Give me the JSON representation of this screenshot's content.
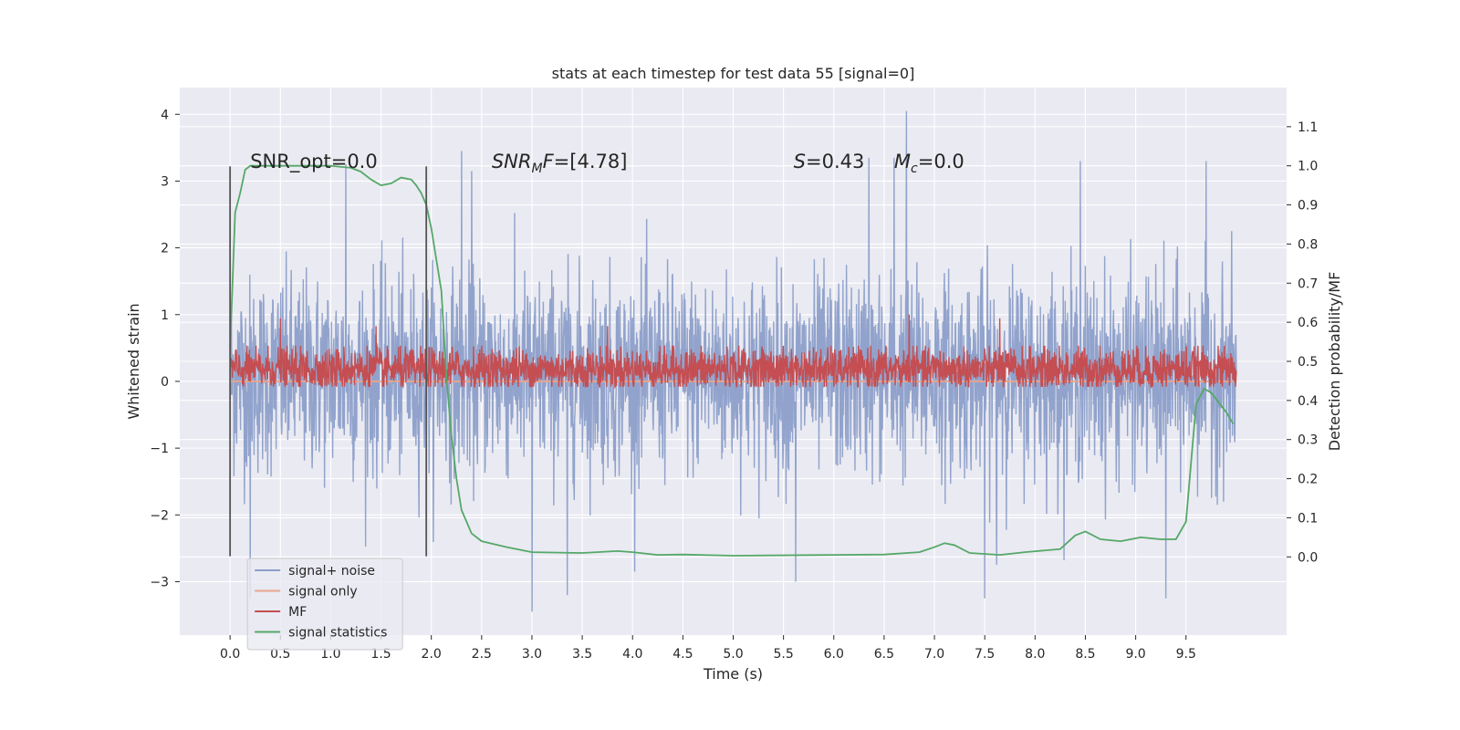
{
  "chart_data": {
    "type": "line",
    "title": "stats at each timestep for test data 55 [signal=0]",
    "xlabel": "Time (s)",
    "ylabel": "Whitened strain",
    "y2label": "Detection probability/MF",
    "xlim": [
      -0.5,
      10.5
    ],
    "ylim": [
      -3.8,
      4.4
    ],
    "y2lim": [
      -0.2,
      1.2
    ],
    "xticks": [
      0.0,
      0.5,
      1.0,
      1.5,
      2.0,
      2.5,
      3.0,
      3.5,
      4.0,
      4.5,
      5.0,
      5.5,
      6.0,
      6.5,
      7.0,
      7.5,
      8.0,
      8.5,
      9.0,
      9.5
    ],
    "xtick_labels": [
      "0.0",
      "0.5",
      "1.0",
      "1.5",
      "2.0",
      "2.5",
      "3.0",
      "3.5",
      "4.0",
      "4.5",
      "5.0",
      "5.5",
      "6.0",
      "6.5",
      "7.0",
      "7.5",
      "8.0",
      "8.5",
      "9.0",
      "9.5"
    ],
    "yticks": [
      -3,
      -2,
      -1,
      0,
      1,
      2,
      3,
      4
    ],
    "ytick_labels": [
      "−3",
      "−2",
      "−1",
      "0",
      "1",
      "2",
      "3",
      "4"
    ],
    "y2ticks": [
      0.0,
      0.1,
      0.2,
      0.3,
      0.4,
      0.5,
      0.6,
      0.7,
      0.8,
      0.9,
      1.0,
      1.1
    ],
    "y2tick_labels": [
      "0.0",
      "0.1",
      "0.2",
      "0.3",
      "0.4",
      "0.5",
      "0.6",
      "0.7",
      "0.8",
      "0.9",
      "1.0",
      "1.1"
    ],
    "grid": true,
    "legend_position": "lower-left",
    "vlines": {
      "x": [
        0.0,
        1.95
      ],
      "ymin": -2.62,
      "ymax": 3.22,
      "color": "#555555"
    },
    "annotations": [
      {
        "x": 0.2,
        "y": 3.2,
        "parts": [
          {
            "text": "SNR_opt=0.0"
          }
        ]
      },
      {
        "x": 2.6,
        "y": 3.2,
        "parts": [
          {
            "text": "SNR",
            "italic": true
          },
          {
            "text": "M",
            "italic": true,
            "sub": true
          },
          {
            "text": "F",
            "italic": true
          },
          {
            "text": "=[4.78]"
          }
        ]
      },
      {
        "x": 5.6,
        "y": 3.2,
        "parts": [
          {
            "text": "S",
            "italic": true
          },
          {
            "text": "=0.43"
          }
        ]
      },
      {
        "x": 6.6,
        "y": 3.2,
        "parts": [
          {
            "text": "M",
            "italic": true
          },
          {
            "text": "c",
            "italic": true,
            "sub": true
          },
          {
            "text": "=0.0"
          }
        ]
      }
    ],
    "series": [
      {
        "name": "signal+ noise",
        "color": "#8c9fc9",
        "axis": "left",
        "style": "noise",
        "x_start": 0.0,
        "x_end": 10.0,
        "envelope": {
          "typical_upper": 1.8,
          "typical_lower": -1.6,
          "peak_max": 4.05,
          "peak_min": -3.45
        },
        "spikes": [
          [
            1.15,
            3.25
          ],
          [
            2.3,
            3.45
          ],
          [
            2.4,
            3.15
          ],
          [
            3.0,
            -3.45
          ],
          [
            3.35,
            -3.2
          ],
          [
            6.35,
            3.35
          ],
          [
            6.6,
            3.35
          ],
          [
            6.72,
            4.05
          ],
          [
            7.5,
            -3.25
          ],
          [
            7.62,
            -2.75
          ],
          [
            8.45,
            3.3
          ],
          [
            9.3,
            -3.25
          ],
          [
            9.7,
            3.3
          ],
          [
            0.2,
            -3.25
          ],
          [
            5.62,
            -3.0
          ]
        ]
      },
      {
        "name": "signal only",
        "color": "#e8a58c",
        "axis": "left",
        "style": "line",
        "x": [
          0.0,
          10.0
        ],
        "y": [
          0.0,
          0.0
        ]
      },
      {
        "name": "MF",
        "color": "#c44e52",
        "axis": "right",
        "style": "noise",
        "x_start": 0.0,
        "x_end": 10.0,
        "base": 0.48,
        "amplitude": 0.05,
        "spikes": [
          [
            0.5,
            0.61
          ],
          [
            1.45,
            0.59
          ],
          [
            3.75,
            0.59
          ],
          [
            6.75,
            0.62
          ],
          [
            7.65,
            0.61
          ]
        ]
      },
      {
        "name": "signal statistics",
        "color": "#55a868",
        "axis": "right",
        "style": "line",
        "x": [
          0.0,
          0.05,
          0.1,
          0.15,
          0.2,
          0.3,
          0.5,
          0.8,
          1.0,
          1.2,
          1.3,
          1.4,
          1.5,
          1.6,
          1.7,
          1.8,
          1.85,
          1.9,
          1.95,
          2.0,
          2.1,
          2.15,
          2.2,
          2.25,
          2.3,
          2.4,
          2.5,
          2.75,
          3.0,
          3.5,
          3.85,
          4.0,
          4.25,
          4.5,
          5.0,
          5.5,
          6.0,
          6.5,
          6.85,
          7.0,
          7.1,
          7.2,
          7.35,
          7.65,
          7.9,
          8.25,
          8.4,
          8.5,
          8.65,
          8.85,
          9.05,
          9.25,
          9.4,
          9.5,
          9.6,
          9.68,
          9.75,
          9.9,
          9.97
        ],
        "y": [
          0.53,
          0.88,
          0.93,
          0.99,
          1.0,
          1.0,
          1.0,
          1.0,
          1.0,
          0.995,
          0.985,
          0.965,
          0.95,
          0.955,
          0.97,
          0.965,
          0.95,
          0.93,
          0.9,
          0.84,
          0.68,
          0.46,
          0.31,
          0.2,
          0.12,
          0.06,
          0.04,
          0.025,
          0.012,
          0.01,
          0.015,
          0.012,
          0.005,
          0.006,
          0.003,
          0.004,
          0.005,
          0.006,
          0.012,
          0.025,
          0.035,
          0.03,
          0.01,
          0.005,
          0.012,
          0.02,
          0.055,
          0.065,
          0.045,
          0.04,
          0.05,
          0.045,
          0.045,
          0.09,
          0.39,
          0.43,
          0.42,
          0.37,
          0.34
        ]
      }
    ]
  }
}
